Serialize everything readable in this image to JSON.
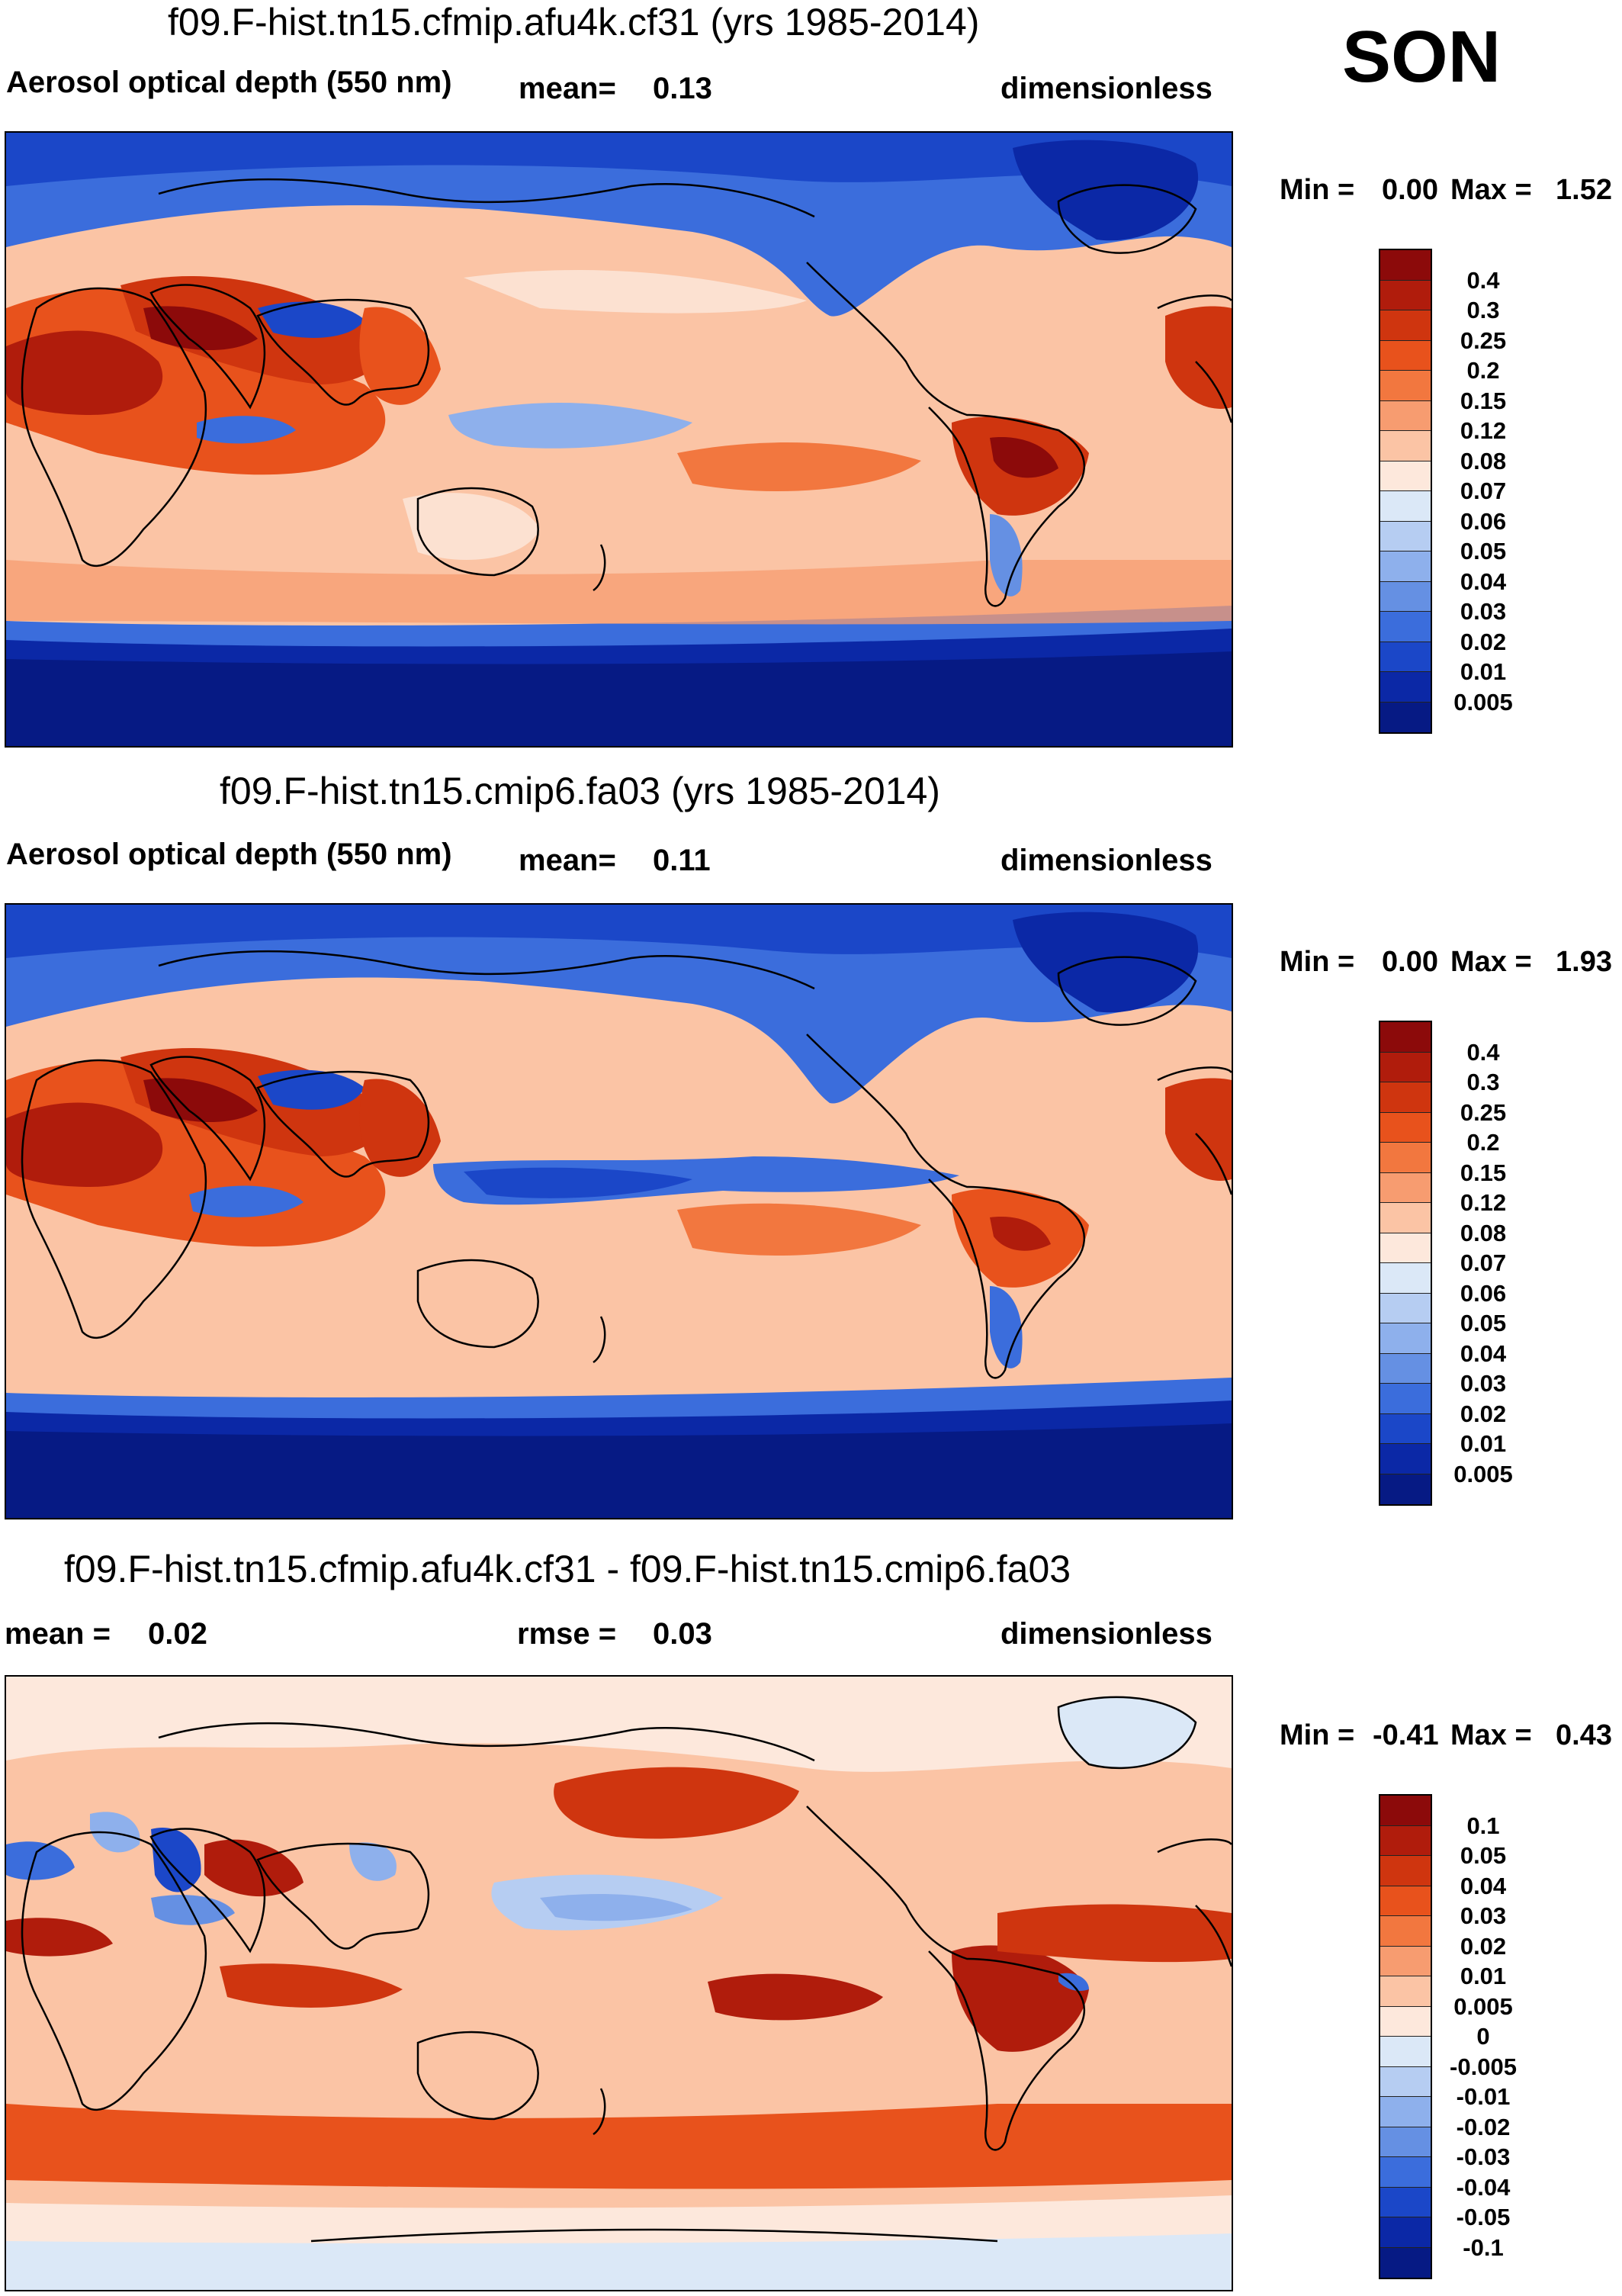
{
  "season": "SON",
  "panels": [
    {
      "title": "f09.F-hist.tn15.cfmip.afu4k.cf31 (yrs 1985-2014)",
      "left_label": "Aerosol optical depth (550 nm)",
      "mean_label": "mean=",
      "mean_value": "0.13",
      "units": "dimensionless",
      "min_label": "Min =",
      "min_value": "0.00",
      "max_label": "Max =",
      "max_value": "1.52"
    },
    {
      "title": "f09.F-hist.tn15.cmip6.fa03 (yrs 1985-2014)",
      "left_label": "Aerosol optical depth (550 nm)",
      "mean_label": "mean=",
      "mean_value": "0.11",
      "units": "dimensionless",
      "min_label": "Min =",
      "min_value": "0.00",
      "max_label": "Max =",
      "max_value": "1.93"
    },
    {
      "title": "f09.F-hist.tn15.cfmip.afu4k.cf31 - f09.F-hist.tn15.cmip6.fa03",
      "mean_label": "mean =",
      "mean_value": "0.02",
      "rmse_label": "rmse =",
      "rmse_value": "0.03",
      "units": "dimensionless",
      "min_label": "Min =",
      "min_value": "-0.41",
      "max_label": "Max =",
      "max_value": "0.43"
    }
  ],
  "colorbars": {
    "aod": {
      "labels": [
        "0.4",
        "0.3",
        "0.25",
        "0.2",
        "0.15",
        "0.12",
        "0.08",
        "0.07",
        "0.06",
        "0.05",
        "0.04",
        "0.03",
        "0.02",
        "0.01",
        "0.005"
      ],
      "colors": [
        "#8c0a0a",
        "#b01c0c",
        "#cf350f",
        "#e8521c",
        "#f2773f",
        "#f79c70",
        "#fbc4a5",
        "#fde8dc",
        "#dbe8f7",
        "#b6cdf2",
        "#8eb0ec",
        "#6590e3",
        "#3b6ddc",
        "#1b47c8",
        "#0b28a6",
        "#061a84"
      ]
    },
    "diff": {
      "labels": [
        "0.1",
        "0.05",
        "0.04",
        "0.03",
        "0.02",
        "0.01",
        "0.005",
        "0",
        "-0.005",
        "-0.01",
        "-0.02",
        "-0.03",
        "-0.04",
        "-0.05",
        "-0.1"
      ],
      "colors": [
        "#8c0a0a",
        "#b01c0c",
        "#cf350f",
        "#e8521c",
        "#f2773f",
        "#f79c70",
        "#fbc4a5",
        "#fde8dc",
        "#dbe8f7",
        "#b6cdf2",
        "#8eb0ec",
        "#6590e3",
        "#3b6ddc",
        "#1b47c8",
        "#0b28a6",
        "#061a84"
      ]
    }
  }
}
